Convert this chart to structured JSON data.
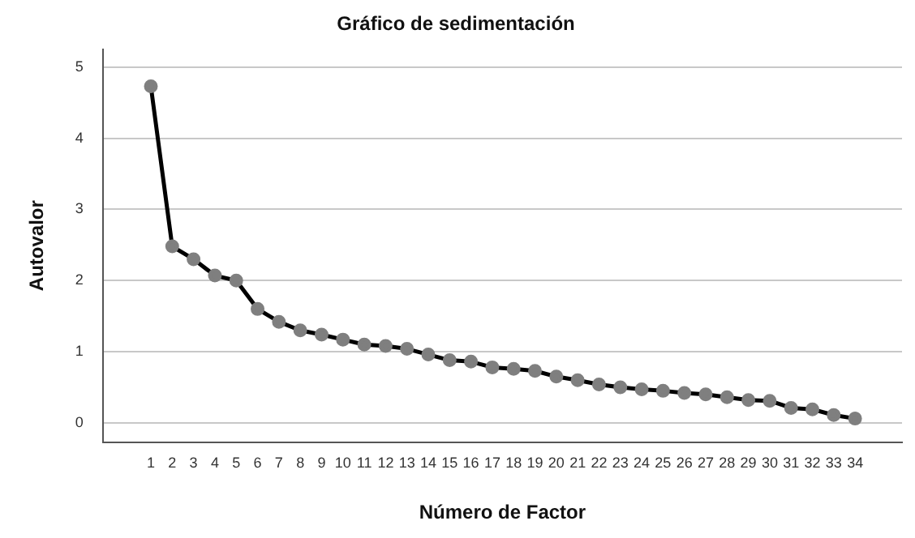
{
  "chart_data": {
    "type": "line",
    "title": "Gráfico de sedimentación",
    "xlabel": "Número de Factor",
    "ylabel": "Autovalor",
    "x": [
      1,
      2,
      3,
      4,
      5,
      6,
      7,
      8,
      9,
      10,
      11,
      12,
      13,
      14,
      15,
      16,
      17,
      18,
      19,
      20,
      21,
      22,
      23,
      24,
      25,
      26,
      27,
      28,
      29,
      30,
      31,
      32,
      33,
      34
    ],
    "series": [
      {
        "color": "#000000",
        "values": [
          4.73,
          2.48,
          2.3,
          2.07,
          2.0,
          1.6,
          1.42,
          1.3,
          1.24,
          1.17,
          1.1,
          1.08,
          1.04,
          0.96,
          0.88,
          0.86,
          0.78,
          0.76,
          0.73,
          0.65,
          0.6,
          0.54,
          0.5,
          0.47,
          0.45,
          0.42,
          0.4,
          0.36,
          0.32,
          0.31,
          0.21,
          0.19,
          0.11,
          0.06
        ]
      }
    ],
    "xlim": [
      -1.25,
      36.2
    ],
    "xticks": [
      1,
      2,
      3,
      4,
      5,
      6,
      7,
      8,
      9,
      10,
      11,
      12,
      13,
      14,
      15,
      16,
      17,
      18,
      19,
      20,
      21,
      22,
      23,
      24,
      25,
      26,
      27,
      28,
      29,
      30,
      31,
      32,
      33,
      34
    ],
    "ylim": [
      -0.27,
      5.25
    ],
    "yticks": [
      0,
      1,
      2,
      3,
      4,
      5
    ],
    "grid": "y",
    "marker": "circle",
    "line_style": "solid",
    "legend": false
  }
}
